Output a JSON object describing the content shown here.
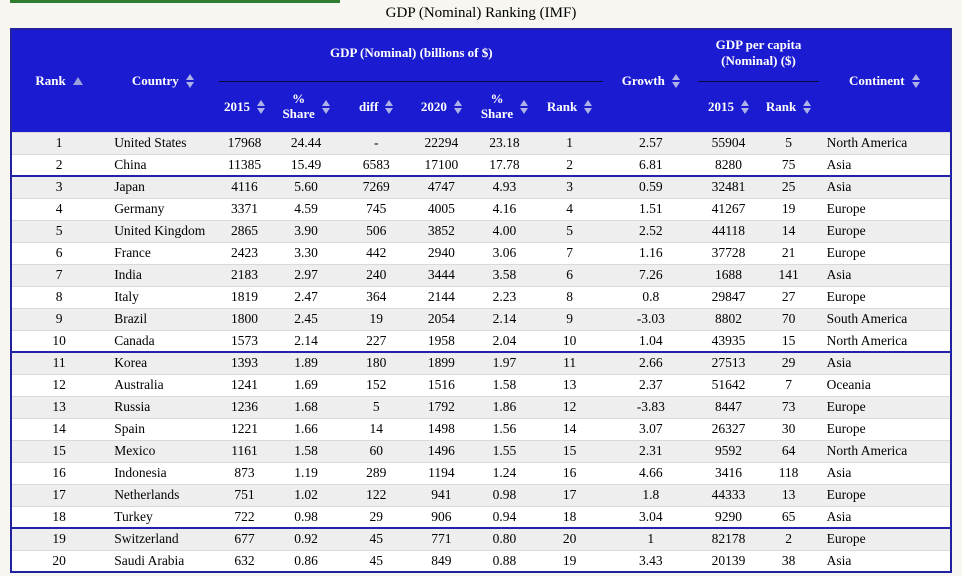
{
  "page": {
    "title": "GDP (Nominal) Ranking (IMF)"
  },
  "colors": {
    "header_bg": "#1b1bd1",
    "header_text": "#ffffff",
    "arrow_color": "#aeb2e8",
    "table_border": "#22229e",
    "row_odd": "#eeeeee",
    "row_even": "#ffffff",
    "row_sep": "#d9d9d9",
    "group_divider": "#2323a8",
    "page_bg": "#f7f6f0",
    "green_line": "#2f7d2f"
  },
  "table": {
    "groups": {
      "gdp": "GDP (Nominal) (billions of $)",
      "gdp_per_capita": "GDP per capita\n(Nominal) ($)"
    },
    "columns": {
      "rank": "Rank",
      "country": "Country",
      "y2015": "2015",
      "share2015": "%\nShare",
      "diff": "diff",
      "y2020": "2020",
      "share2020": "%\nShare",
      "rank2020": "Rank",
      "growth": "Growth",
      "pc2015": "2015",
      "pcrank": "Rank",
      "continent": "Continent"
    },
    "col_keys": [
      "rank",
      "country",
      "gdp-2015",
      "gdp-share-2015",
      "diff",
      "gdp-2020",
      "gdp-share-2020",
      "rank-2020",
      "growth",
      "gdp-per-capita-2015",
      "gdp-per-capita-rank",
      "continent"
    ],
    "group_end_rows": [
      2,
      10,
      18
    ],
    "rows": [
      [
        "1",
        "United States",
        "17968",
        "24.44",
        "-",
        "22294",
        "23.18",
        "1",
        "2.57",
        "55904",
        "5",
        "North America"
      ],
      [
        "2",
        "China",
        "11385",
        "15.49",
        "6583",
        "17100",
        "17.78",
        "2",
        "6.81",
        "8280",
        "75",
        "Asia"
      ],
      [
        "3",
        "Japan",
        "4116",
        "5.60",
        "7269",
        "4747",
        "4.93",
        "3",
        "0.59",
        "32481",
        "25",
        "Asia"
      ],
      [
        "4",
        "Germany",
        "3371",
        "4.59",
        "745",
        "4005",
        "4.16",
        "4",
        "1.51",
        "41267",
        "19",
        "Europe"
      ],
      [
        "5",
        "United Kingdom",
        "2865",
        "3.90",
        "506",
        "3852",
        "4.00",
        "5",
        "2.52",
        "44118",
        "14",
        "Europe"
      ],
      [
        "6",
        "France",
        "2423",
        "3.30",
        "442",
        "2940",
        "3.06",
        "7",
        "1.16",
        "37728",
        "21",
        "Europe"
      ],
      [
        "7",
        "India",
        "2183",
        "2.97",
        "240",
        "3444",
        "3.58",
        "6",
        "7.26",
        "1688",
        "141",
        "Asia"
      ],
      [
        "8",
        "Italy",
        "1819",
        "2.47",
        "364",
        "2144",
        "2.23",
        "8",
        "0.8",
        "29847",
        "27",
        "Europe"
      ],
      [
        "9",
        "Brazil",
        "1800",
        "2.45",
        "19",
        "2054",
        "2.14",
        "9",
        "-3.03",
        "8802",
        "70",
        "South America"
      ],
      [
        "10",
        "Canada",
        "1573",
        "2.14",
        "227",
        "1958",
        "2.04",
        "10",
        "1.04",
        "43935",
        "15",
        "North America"
      ],
      [
        "11",
        "Korea",
        "1393",
        "1.89",
        "180",
        "1899",
        "1.97",
        "11",
        "2.66",
        "27513",
        "29",
        "Asia"
      ],
      [
        "12",
        "Australia",
        "1241",
        "1.69",
        "152",
        "1516",
        "1.58",
        "13",
        "2.37",
        "51642",
        "7",
        "Oceania"
      ],
      [
        "13",
        "Russia",
        "1236",
        "1.68",
        "5",
        "1792",
        "1.86",
        "12",
        "-3.83",
        "8447",
        "73",
        "Europe"
      ],
      [
        "14",
        "Spain",
        "1221",
        "1.66",
        "14",
        "1498",
        "1.56",
        "14",
        "3.07",
        "26327",
        "30",
        "Europe"
      ],
      [
        "15",
        "Mexico",
        "1161",
        "1.58",
        "60",
        "1496",
        "1.55",
        "15",
        "2.31",
        "9592",
        "64",
        "North America"
      ],
      [
        "16",
        "Indonesia",
        "873",
        "1.19",
        "289",
        "1194",
        "1.24",
        "16",
        "4.66",
        "3416",
        "118",
        "Asia"
      ],
      [
        "17",
        "Netherlands",
        "751",
        "1.02",
        "122",
        "941",
        "0.98",
        "17",
        "1.8",
        "44333",
        "13",
        "Europe"
      ],
      [
        "18",
        "Turkey",
        "722",
        "0.98",
        "29",
        "906",
        "0.94",
        "18",
        "3.04",
        "9290",
        "65",
        "Asia"
      ],
      [
        "19",
        "Switzerland",
        "677",
        "0.92",
        "45",
        "771",
        "0.80",
        "20",
        "1",
        "82178",
        "2",
        "Europe"
      ],
      [
        "20",
        "Saudi Arabia",
        "632",
        "0.86",
        "45",
        "849",
        "0.88",
        "19",
        "3.43",
        "20139",
        "38",
        "Asia"
      ]
    ]
  }
}
